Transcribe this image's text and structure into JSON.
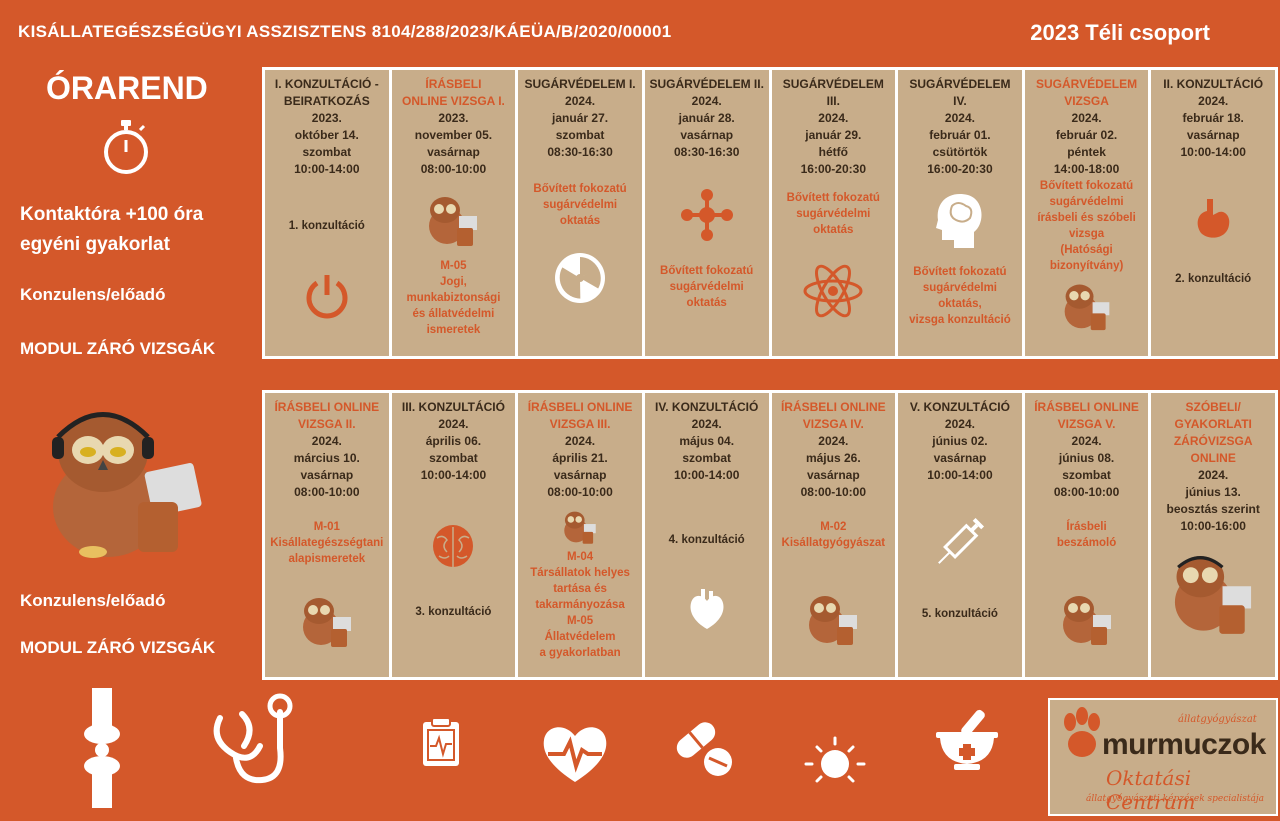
{
  "header": {
    "title": "KISÁLLATEGÉSZSÉGÜGYI ASSZISZTENS  8104/288/2023/KÁEÜA/B/2020/00001",
    "group": "2023 Téli csoport"
  },
  "left": {
    "orarend": "ÓRAREND",
    "kontakt_line1": "Kontaktóra +100 óra",
    "kontakt_line2": "egyéni gyakorlat",
    "konzulens1": "Konzulens/előadó",
    "modul1": "MODUL ZÁRÓ VIZSGÁK",
    "konzulens2": "Konzulens/előadó",
    "modul2": "MODUL ZÁRÓ VIZSGÁK"
  },
  "row1": [
    {
      "t1": "I. KONZULTÁCIÓ -",
      "t2": "BEIRATKOZÁS",
      "year": "2023.",
      "date": "október 14.",
      "day": "szombat",
      "time": "10:00-14:00",
      "konz": "1. konzultáció",
      "icon": "power-icon"
    },
    {
      "t1": "ÍRÁSBELI",
      "t2": "ONLINE VIZSGA  I.",
      "year": "2023.",
      "date": "november 05.",
      "day": "vasárnap",
      "time": "08:00-10:00",
      "icon": "owl-icon",
      "d1": "M-05",
      "d2": "Jogi,",
      "d3": "munkabiztonsági",
      "d4": "és állatvédelmi",
      "d5": "ismeretek"
    },
    {
      "t1": "SUGÁRVÉDELEM I.",
      "year": "2024.",
      "date": "január 27.",
      "day": "szombat",
      "time": "08:30-16:30",
      "d1": "Bővített fokozatú",
      "d2": "sugárvédelmi",
      "d3": "oktatás",
      "icon": "radiation-icon"
    },
    {
      "t1": "SUGÁRVÉDELEM II.",
      "year": "2024.",
      "date": "január 28.",
      "day": "vasárnap",
      "time": "08:30-16:30",
      "icon": "molecule-icon",
      "d1": "Bővített fokozatú",
      "d2": "sugárvédelmi",
      "d3": "oktatás"
    },
    {
      "t1": "SUGÁRVÉDELEM III.",
      "year": "2024.",
      "date": "január  29.",
      "day": "hétfő",
      "time": "16:00-20:30",
      "d1": "Bővített fokozatú",
      "d2": "sugárvédelmi",
      "d3": "oktatás",
      "icon": "atom-icon"
    },
    {
      "t1": "SUGÁRVÉDELEM IV.",
      "year": "2024.",
      "date": "február 01.",
      "day": "csütörtök",
      "time": "16:00-20:30",
      "icon": "brain-head-icon",
      "d1": "Bővített fokozatú",
      "d2": "sugárvédelmi",
      "d3": "oktatás,",
      "d4": "vizsga konzultáció"
    },
    {
      "t1": "SUGÁRVÉDELEM",
      "t2": "VIZSGA",
      "year": "2024.",
      "date": "február 02.",
      "day": "péntek",
      "time": "14:00-18:00",
      "d1": "Bővített fokozatú",
      "d2": "sugárvédelmi",
      "d3": "írásbeli és szóbeli",
      "d4": "vizsga",
      "d5": "(Hatósági",
      "d6": "bizonyítvány)",
      "icon": "owl-icon"
    },
    {
      "t1": "II. KONZULTÁCIÓ",
      "year": "2024.",
      "date": "február 18.",
      "day": "vasárnap",
      "time": "10:00-14:00",
      "icon": "stomach-icon",
      "konz": "2. konzultáció"
    }
  ],
  "row2": [
    {
      "t1": "ÍRÁSBELI ONLINE",
      "t2": "VIZSGA  II.",
      "year": "2024.",
      "date": "március 10.",
      "day": "vasárnap",
      "time": "08:00-10:00",
      "d1": "M-01",
      "d2": "Kisállategészségtani",
      "d3": "alapismeretek",
      "icon": "owl-icon"
    },
    {
      "t1": "III. KONZULTÁCIÓ",
      "year": "2024.",
      "date": "április 06.",
      "day": "szombat",
      "time": "10:00-14:00",
      "icon": "brain-icon",
      "konz": "3. konzultáció"
    },
    {
      "t1": "ÍRÁSBELI ONLINE",
      "t2": "VIZSGA  III.",
      "year": "2024.",
      "date": "április 21.",
      "day": "vasárnap",
      "time": "08:00-10:00",
      "icon": "owl-icon",
      "d1": "M-04",
      "d2": "Társállatok helyes",
      "d3": "tartása és",
      "d4": "takarmányozása",
      "d5": "M-05",
      "d6": "Állatvédelem",
      "d7": "a gyakorlatban"
    },
    {
      "t1": "IV. KONZULTÁCIÓ",
      "year": "2024.",
      "date": "május  04.",
      "day": "szombat",
      "time": "10:00-14:00",
      "konz": "4. konzultáció",
      "icon": "heart-organ-icon"
    },
    {
      "t1": "ÍRÁSBELI ONLINE",
      "t2": "VIZSGA  IV.",
      "year": "2024.",
      "date": "május  26.",
      "day": "vasárnap",
      "time": "08:00-10:00",
      "d1": "M-02",
      "d2": "Kisállatgyógyászat",
      "icon": "owl-icon"
    },
    {
      "t1": "V. KONZULTÁCIÓ",
      "year": "2024.",
      "date": "június 02.",
      "day": "vasárnap",
      "time": "10:00-14:00",
      "icon": "syringe-icon",
      "konz": "5. konzultáció"
    },
    {
      "t1": "ÍRÁSBELI ONLINE",
      "t2": "VIZSGA  V.",
      "year": "2024.",
      "date": "június 08.",
      "day": "szombat",
      "time": "08:00-10:00",
      "d1": "Írásbeli",
      "d2": "beszámoló",
      "icon": "owl-icon"
    },
    {
      "t1": "SZÓBELI/",
      "t2": "GYAKORLATI",
      "t3": "ZÁRÓVIZSGA",
      "t4": "ONLINE",
      "year": "2024.",
      "date": "június 13.",
      "day": "beosztás szerint",
      "time": "10:00-16:00",
      "icon": "owl-icon"
    }
  ],
  "bottom_icons": [
    "bone-joint-icon",
    "stethoscope-icon",
    "clipboard-ecg-icon",
    "heart-pulse-icon",
    "pills-icon",
    "sun-icon",
    "mortar-pestle-icon"
  ],
  "logo": {
    "tag": "állatgyógyászat",
    "brand": "murmuczok",
    "sub": "Oktatási Centrum",
    "tagline": "állatgyógyászati képzések specialistája"
  },
  "colors": {
    "background": "#d4582a",
    "cell": "#c8ad8a",
    "text_dark": "#3a2a1a",
    "accent": "#d4582a"
  }
}
